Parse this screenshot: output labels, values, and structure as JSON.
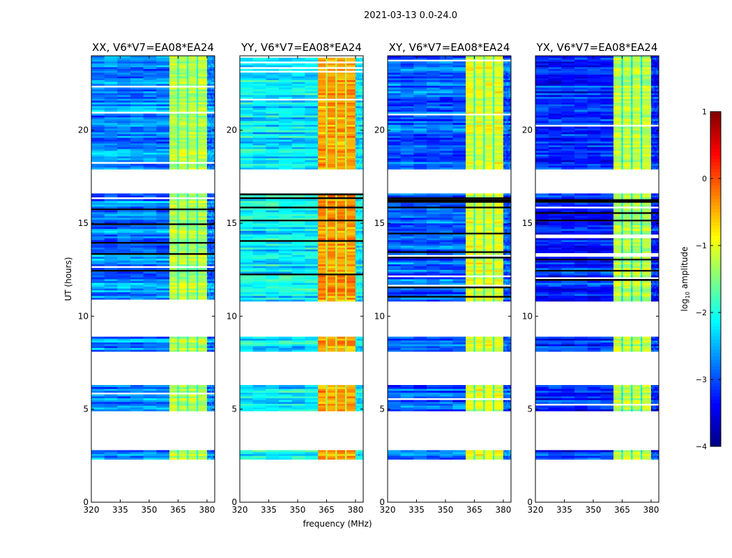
{
  "chart_data": {
    "type": "heatmap",
    "title": "2021-03-13 0.0-24.0",
    "xlabel": "frequency (MHz)",
    "ylabel": "UT (hours)",
    "xlim": [
      320,
      384
    ],
    "ylim": [
      0,
      24
    ],
    "xticks": [
      320,
      335,
      350,
      365,
      380
    ],
    "yticks": [
      0,
      5,
      10,
      15,
      20
    ],
    "colorbar": {
      "label_main": "log",
      "label_sub": "10",
      "label_rest": " amplitude",
      "range": [
        -4,
        1
      ],
      "ticks": [
        1,
        0,
        -1,
        -2,
        -3,
        -4
      ],
      "colormap": "jet"
    },
    "data_time_ranges": [
      [
        2.3,
        2.8
      ],
      [
        4.9,
        6.3
      ],
      [
        8.1,
        8.9
      ],
      [
        10.8,
        16.6
      ],
      [
        17.9,
        24.0
      ]
    ],
    "rfi_band_mhz": [
      360.5,
      380
    ],
    "rfi_gap_channels_mhz": [
      365,
      370,
      375
    ],
    "panels": [
      {
        "title": "XX, V6*V7=EA08*EA24",
        "background_level": -2.7,
        "rfi_level": -1.2
      },
      {
        "title": "YY, V6*V7=EA08*EA24",
        "background_level": -2.2,
        "rfi_level": -0.4
      },
      {
        "title": "XY, V6*V7=EA08*EA24",
        "background_level": -2.9,
        "rfi_level": -1.0
      },
      {
        "title": "YX, V6*V7=EA08*EA24",
        "background_level": -3.2,
        "rfi_level": -1.2
      }
    ]
  }
}
